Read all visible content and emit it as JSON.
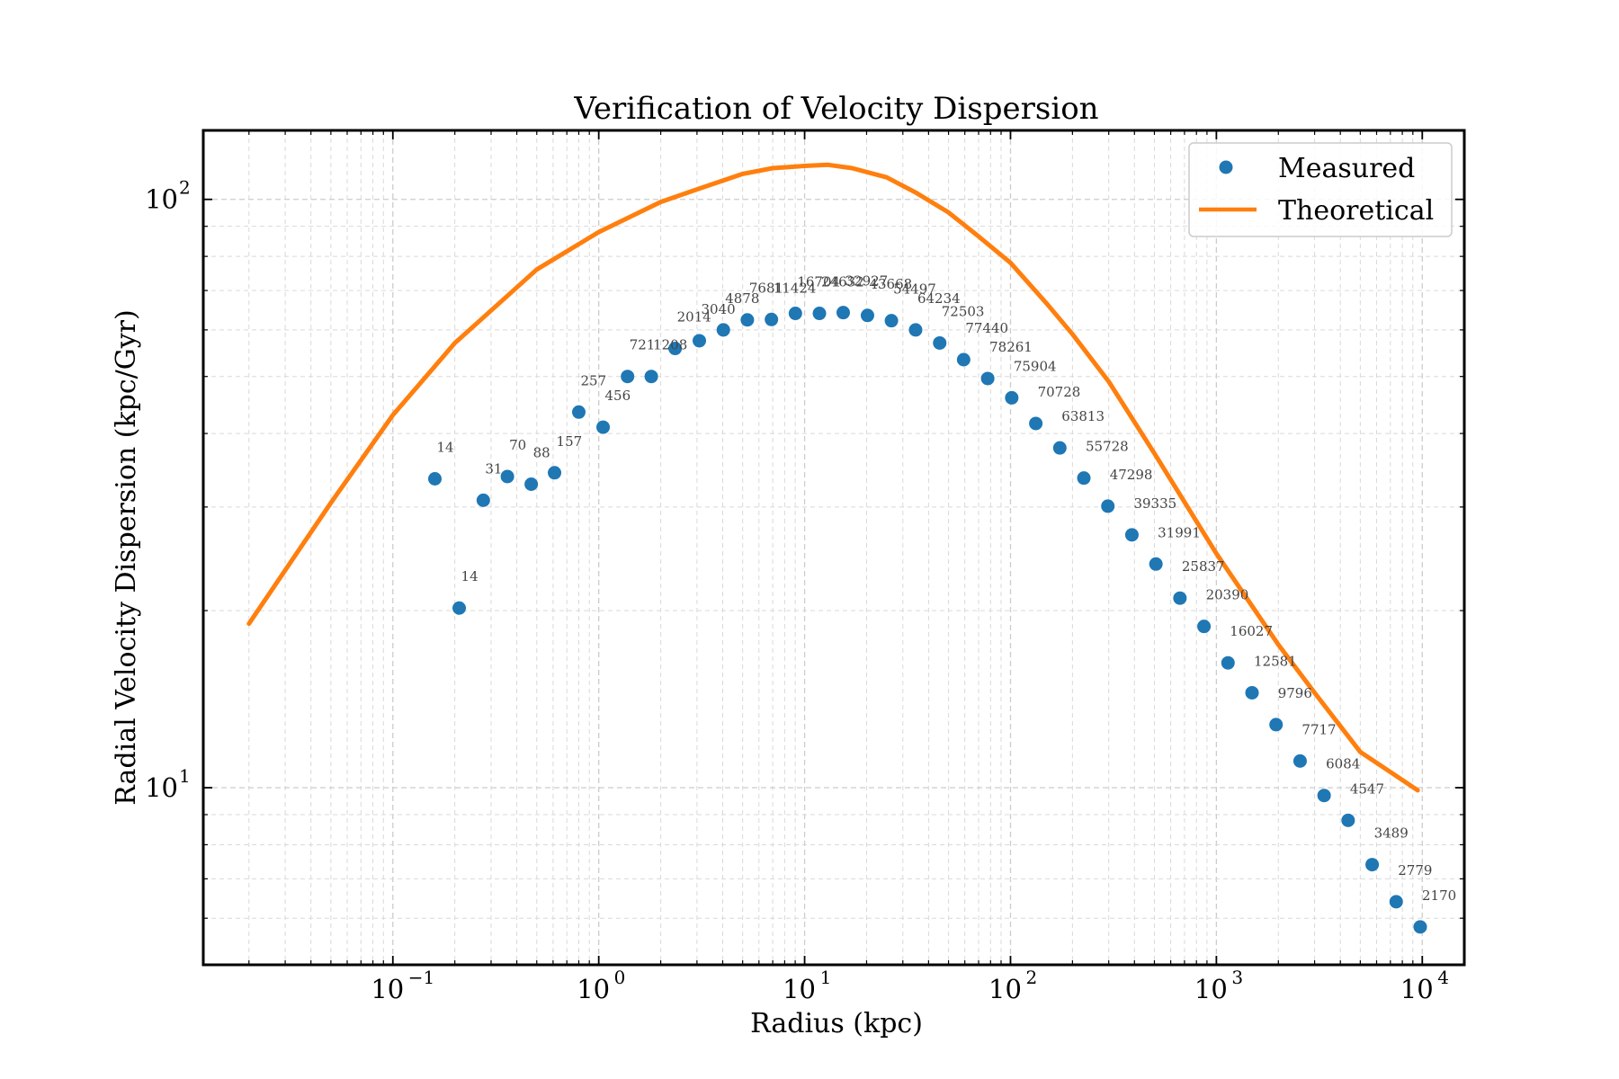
{
  "chart_data": {
    "type": "scatter",
    "title": "Verification of Velocity Dispersion",
    "xlabel": "Radius (kpc)",
    "ylabel": "Radial Velocity Dispersion (kpc/Gyr)",
    "x_scale": "log",
    "y_scale": "log",
    "xlim": [
      0.012,
      16000
    ],
    "ylim": [
      5.0,
      131
    ],
    "x_ticks": [
      {
        "value": 0.1,
        "base": "10",
        "exp": "−1"
      },
      {
        "value": 1,
        "base": "10",
        "exp": "0"
      },
      {
        "value": 10,
        "base": "10",
        "exp": "1"
      },
      {
        "value": 100,
        "base": "10",
        "exp": "2"
      },
      {
        "value": 1000,
        "base": "10",
        "exp": "3"
      },
      {
        "value": 10000,
        "base": "10",
        "exp": "4"
      }
    ],
    "y_ticks": [
      {
        "value": 10,
        "base": "10",
        "exp": "1"
      },
      {
        "value": 100,
        "base": "10",
        "exp": "2"
      }
    ],
    "grid": true,
    "legend": {
      "position": "top-right",
      "entries": [
        {
          "label": "Measured",
          "marker": "circle",
          "color": "#1f77b4"
        },
        {
          "label": "Theoretical",
          "marker": "line",
          "color": "#ff7f0e"
        }
      ]
    },
    "series": [
      {
        "name": "Measured",
        "kind": "scatter",
        "color": "#1f77b4",
        "points": [
          {
            "x": 0.16,
            "y": 33.5,
            "label": "14"
          },
          {
            "x": 0.21,
            "y": 20.2,
            "label": "14"
          },
          {
            "x": 0.275,
            "y": 30.8,
            "label": "31"
          },
          {
            "x": 0.36,
            "y": 33.8,
            "label": "70"
          },
          {
            "x": 0.47,
            "y": 32.8,
            "label": "88"
          },
          {
            "x": 0.61,
            "y": 34.3,
            "label": "157"
          },
          {
            "x": 0.8,
            "y": 43.5,
            "label": "257"
          },
          {
            "x": 1.05,
            "y": 41.0,
            "label": "456"
          },
          {
            "x": 1.38,
            "y": 50.0,
            "label": "721"
          },
          {
            "x": 1.8,
            "y": 50.0,
            "label": "1208"
          },
          {
            "x": 2.35,
            "y": 55.8,
            "label": "2014"
          },
          {
            "x": 3.08,
            "y": 57.5,
            "label": "3040"
          },
          {
            "x": 4.03,
            "y": 60.0,
            "label": "4878"
          },
          {
            "x": 5.27,
            "y": 62.4,
            "label": "7681"
          },
          {
            "x": 6.9,
            "y": 62.5,
            "label": "11424"
          },
          {
            "x": 9.02,
            "y": 64.0,
            "label": "16704"
          },
          {
            "x": 11.8,
            "y": 64.0,
            "label": "24632"
          },
          {
            "x": 15.4,
            "y": 64.2,
            "label": "32927"
          },
          {
            "x": 20.2,
            "y": 63.5,
            "label": "43668"
          },
          {
            "x": 26.4,
            "y": 62.2,
            "label": "54497"
          },
          {
            "x": 34.6,
            "y": 60.0,
            "label": "64234"
          },
          {
            "x": 45.3,
            "y": 57.0,
            "label": "72503"
          },
          {
            "x": 59.2,
            "y": 53.4,
            "label": "77440"
          },
          {
            "x": 77.5,
            "y": 49.6,
            "label": "78261"
          },
          {
            "x": 101.4,
            "y": 46.0,
            "label": "75904"
          },
          {
            "x": 132.7,
            "y": 41.6,
            "label": "70728"
          },
          {
            "x": 173.6,
            "y": 37.8,
            "label": "63813"
          },
          {
            "x": 227.1,
            "y": 33.6,
            "label": "55728"
          },
          {
            "x": 297.1,
            "y": 30.1,
            "label": "47298"
          },
          {
            "x": 388.7,
            "y": 26.9,
            "label": "39335"
          },
          {
            "x": 508.5,
            "y": 24.0,
            "label": "31991"
          },
          {
            "x": 665.3,
            "y": 21.0,
            "label": "25837"
          },
          {
            "x": 870.4,
            "y": 18.8,
            "label": "20390"
          },
          {
            "x": 1138.7,
            "y": 16.3,
            "label": "16027"
          },
          {
            "x": 1489.8,
            "y": 14.5,
            "label": "12581"
          },
          {
            "x": 1949.1,
            "y": 12.8,
            "label": "9796"
          },
          {
            "x": 2550.0,
            "y": 11.1,
            "label": "7717"
          },
          {
            "x": 3336.0,
            "y": 9.7,
            "label": "6084"
          },
          {
            "x": 4364.0,
            "y": 8.8,
            "label": "4547"
          },
          {
            "x": 5710.0,
            "y": 7.4,
            "label": "3489"
          },
          {
            "x": 7470.0,
            "y": 6.4,
            "label": "2779"
          },
          {
            "x": 9773.0,
            "y": 5.8,
            "label": "2170"
          }
        ]
      },
      {
        "name": "Theoretical",
        "kind": "line",
        "color": "#ff7f0e",
        "x": [
          0.02,
          0.05,
          0.1,
          0.2,
          0.5,
          1,
          2,
          3,
          5,
          7,
          10,
          13,
          17,
          25,
          35,
          50,
          70,
          100,
          150,
          200,
          300,
          500,
          1000,
          2000,
          3000,
          5000,
          9500
        ],
        "y": [
          19.0,
          30.5,
          43.0,
          57.0,
          76.0,
          88.0,
          99.0,
          104.0,
          110.5,
          113.0,
          114.0,
          114.5,
          113.0,
          109.0,
          102.5,
          95.0,
          86.5,
          78.0,
          66.5,
          59.0,
          49.0,
          37.0,
          25.0,
          17.5,
          14.5,
          11.5,
          9.9
        ]
      }
    ]
  }
}
